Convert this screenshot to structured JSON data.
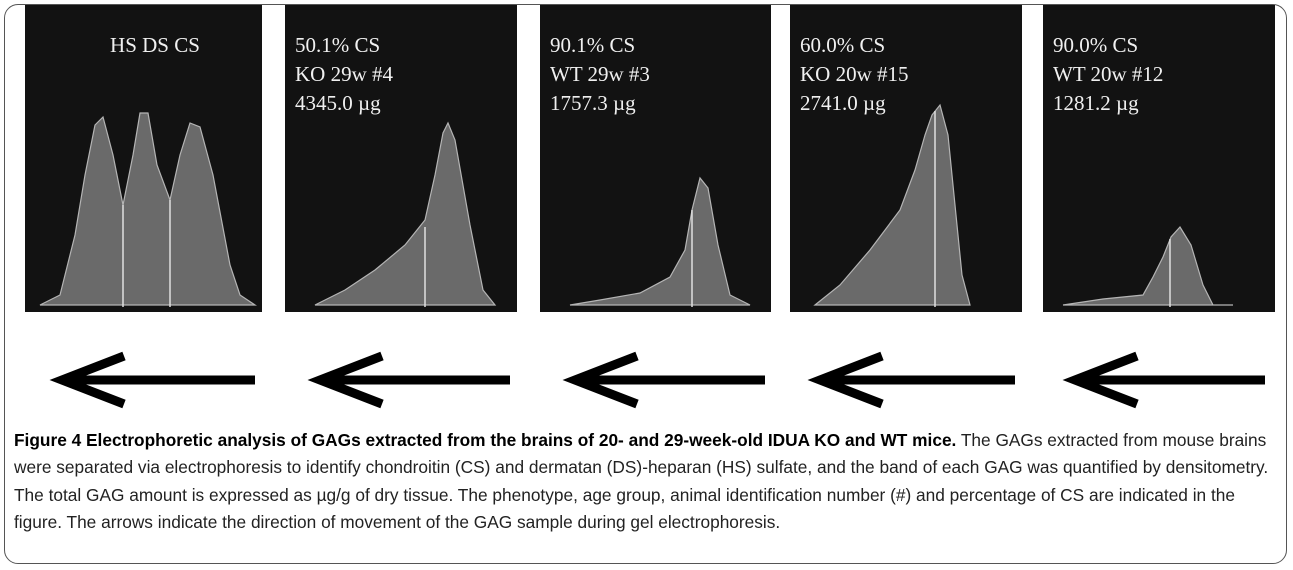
{
  "panels": [
    {
      "labels": [
        "HS DS CS"
      ]
    },
    {
      "labels": [
        "50.1% CS",
        "KO 29w #4",
        "4345.0 µg"
      ]
    },
    {
      "labels": [
        "90.1% CS",
        "WT 29w #3",
        "1757.3 µg"
      ]
    },
    {
      "labels": [
        "60.0% CS",
        "KO 20w #15",
        "2741.0 µg"
      ]
    },
    {
      "labels": [
        "90.0% CS",
        "WT 20w #12",
        "1281.2 µg"
      ]
    }
  ],
  "caption": {
    "title": "Figure 4 Electrophoretic analysis of GAGs extracted from the brains of 20- and 29-week-old IDUA KO and WT mice.",
    "text": "The GAGs extracted from mouse brains were separated via electrophoresis to identify chondroitin (CS) and dermatan (DS)-heparan (HS) sulfate, and the band of each GAG was quantified by densitometry. The total GAG amount is expressed as µg/g of dry tissue. The phenotype, age group, animal identification number (#) and percentage of CS are indicated in the figure. The arrows indicate the direction of movement of the GAG sample during gel electrophoresis."
  }
}
